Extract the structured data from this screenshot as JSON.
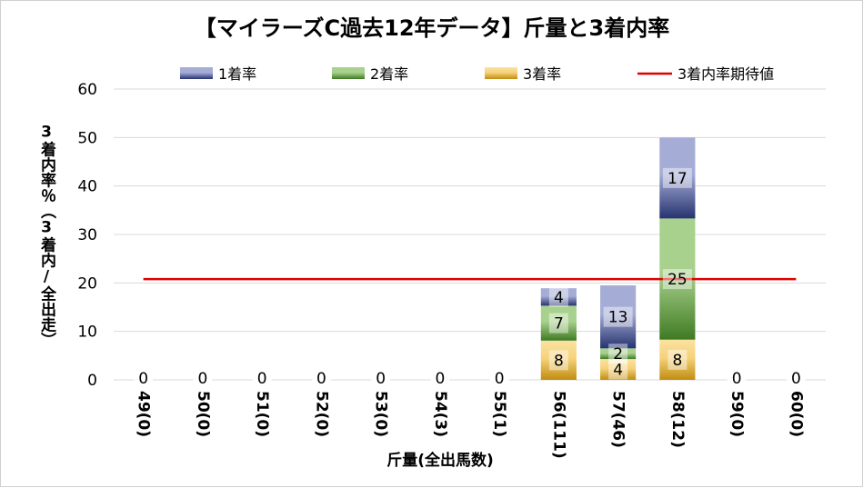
{
  "chart_data": {
    "type": "bar",
    "stacked": true,
    "title": "【マイラーズC過去12年データ】斤量と3着内率",
    "xlabel": "斤量(全出馬数)",
    "ylabel": "3着内率％（3着内/全出走）",
    "ylim": [
      0,
      60
    ],
    "yticks": [
      0,
      10,
      20,
      30,
      40,
      50,
      60
    ],
    "grid": true,
    "legend_position": "top",
    "categories": [
      "49(0)",
      "50(0)",
      "51(0)",
      "52(0)",
      "53(0)",
      "54(3)",
      "55(1)",
      "56(111)",
      "57(46)",
      "58(12)",
      "59(0)",
      "60(0)"
    ],
    "series": [
      {
        "name": "3着率",
        "key": "s3",
        "color": "#d9a520",
        "values": [
          0,
          0,
          0,
          0,
          0,
          0,
          0,
          8.1,
          4.3,
          8.3,
          0,
          0
        ],
        "labels": [
          "0",
          "0",
          "0",
          "0",
          "0",
          "0",
          "0",
          "8",
          "4",
          "8",
          "0",
          "0"
        ]
      },
      {
        "name": "2着率",
        "key": "s2",
        "color": "#5e9e3a",
        "values": [
          0,
          0,
          0,
          0,
          0,
          0,
          0,
          7.2,
          2.2,
          25.0,
          0,
          0
        ],
        "labels": [
          "",
          "",
          "",
          "",
          "",
          "",
          "",
          "7",
          "2",
          "25",
          "",
          ""
        ]
      },
      {
        "name": "1着率",
        "key": "s1",
        "color": "#3a4b9a",
        "values": [
          0,
          0,
          0,
          0,
          0,
          0,
          0,
          3.6,
          13.0,
          16.7,
          0,
          0
        ],
        "labels": [
          "",
          "",
          "",
          "",
          "",
          "",
          "",
          "4",
          "13",
          "17",
          "",
          ""
        ]
      }
    ],
    "reference_line": {
      "name": "3着内率期待値",
      "value": 20.8,
      "color": "#e00000"
    },
    "legend": {
      "s1": "1着率",
      "s2": "2着率",
      "s3": "3着率",
      "ref": "3着内率期待値"
    }
  }
}
